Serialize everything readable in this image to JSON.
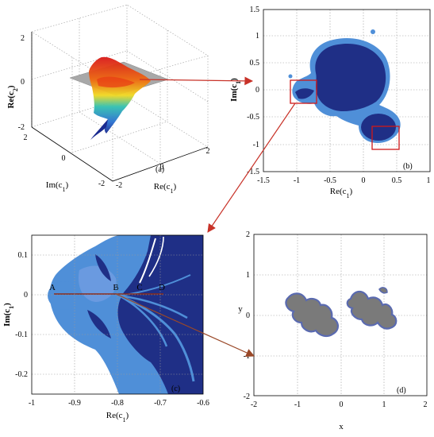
{
  "figure": {
    "panel_a": {
      "tag": "(a)",
      "z_label": "Re(c2)",
      "x_label": "Re(c1)",
      "y_label": "Im(c1)",
      "z_ticks": [
        "2",
        "0",
        "-2"
      ],
      "x_ticks": [
        "-2",
        "0",
        "2"
      ],
      "y_ticks": [
        "2",
        "0",
        "-2"
      ]
    },
    "panel_b": {
      "tag": "(b)",
      "x_label": "Re(c1)",
      "y_label": "Im(c1)",
      "xlim": [
        -1.5,
        1
      ],
      "ylim": [
        -1.5,
        1.5
      ],
      "x_ticks": [
        "-1.5",
        "-1",
        "-0.5",
        "0",
        "0.5",
        "1"
      ],
      "y_ticks": [
        "1.5",
        "1",
        "0.5",
        "0",
        "-0.5",
        "-1",
        "-1.5"
      ]
    },
    "panel_c": {
      "tag": "(c)",
      "x_label": "Re(c1)",
      "y_label": "Im(c1)",
      "xlim": [
        -1,
        -0.6
      ],
      "ylim": [
        -0.25,
        0.15
      ],
      "x_ticks": [
        "-1",
        "-0.9",
        "-0.8",
        "-0.7",
        "-0.6"
      ],
      "y_ticks": [
        "0.1",
        "0",
        "-0.1",
        "-0.2"
      ],
      "points": [
        {
          "label": "A",
          "color": "#7aa23a"
        },
        {
          "label": "B",
          "color": "#8a8a1a"
        },
        {
          "label": "C",
          "color": "#6a8a3a"
        },
        {
          "label": "D",
          "color": "#9a5a8a"
        }
      ]
    },
    "panel_d": {
      "tag": "(d)",
      "x_label": "x",
      "y_label": "y",
      "xlim": [
        -2,
        2
      ],
      "ylim": [
        -2,
        2
      ],
      "x_ticks": [
        "-2",
        "-1",
        "0",
        "1",
        "2"
      ],
      "y_ticks": [
        "2",
        "1",
        "0",
        "-1",
        "-2"
      ]
    },
    "colors": {
      "dark_blue": "#1f2f86",
      "light_blue": "#4f8fd8",
      "arrow": "#c83228",
      "arrow_brown": "#9a4828",
      "gray_fill": "#7a7a7a",
      "outline_blue": "#5a6ab0"
    }
  }
}
